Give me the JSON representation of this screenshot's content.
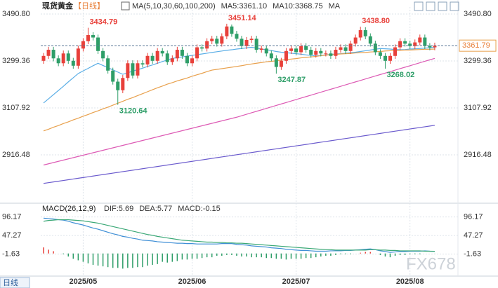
{
  "chart_data": [
    {
      "type": "candlestick",
      "title": "现货黄金",
      "subtitle": "【日线】",
      "period_label": "日线",
      "watermark": "FX678",
      "legend": [
        {
          "label": "MA(5,10,30,60,100,200)",
          "color": "#333333"
        },
        {
          "label": "MA5:3361.10",
          "color": "#4a90c8"
        },
        {
          "label": "MA10:3368.75",
          "color": "#4a90c8"
        },
        {
          "label": "MA",
          "color": "#4a90c8"
        }
      ],
      "up_color": "#e8403a",
      "down_color": "#2e9e68",
      "grid": true,
      "ylim": [
        2725,
        3519.4
      ],
      "yticks": [
        {
          "value": 3490.8,
          "label": "3490.80"
        },
        {
          "value": 3299.36,
          "label": "3299.36"
        },
        {
          "value": 3107.92,
          "label": "3107.92"
        },
        {
          "value": 2916.48,
          "label": "2916.48"
        }
      ],
      "categories": [
        null,
        null,
        null,
        null,
        null,
        null,
        null,
        null,
        "2025/05",
        null,
        null,
        null,
        null,
        null,
        null,
        null,
        null,
        null,
        null,
        null,
        null,
        null,
        null,
        null,
        null,
        null,
        null,
        null,
        null,
        null,
        "2025/06",
        null,
        null,
        null,
        null,
        null,
        null,
        null,
        null,
        null,
        null,
        null,
        null,
        null,
        null,
        null,
        null,
        null,
        null,
        null,
        null,
        "2025/07",
        null,
        null,
        null,
        null,
        null,
        null,
        null,
        null,
        null,
        null,
        null,
        null,
        null,
        null,
        null,
        null,
        null,
        null,
        null,
        null,
        null,
        null,
        "2025/08",
        null,
        null,
        null,
        null,
        null
      ],
      "open": [
        3300,
        3320,
        3345,
        3310,
        3290,
        3330,
        3300,
        3280,
        3350,
        3380,
        3405,
        3395,
        3340,
        3310,
        3260,
        3215,
        3180,
        3230,
        3290,
        3240,
        3290,
        3285,
        3320,
        3300,
        3340,
        3330,
        3295,
        3310,
        3345,
        3320,
        3290,
        3310,
        3355,
        3350,
        3380,
        3390,
        3370,
        3400,
        3440,
        3410,
        3390,
        3360,
        3385,
        3390,
        3345,
        3350,
        3330,
        3310,
        3275,
        3300,
        3340,
        3350,
        3335,
        3360,
        3345,
        3325,
        3340,
        3330,
        3330,
        3320,
        3345,
        3355,
        3340,
        3370,
        3395,
        3425,
        3400,
        3370,
        3335,
        3320,
        3300,
        3320,
        3355,
        3380,
        3370,
        3360,
        3375,
        3395,
        3360,
        3355
      ],
      "high": [
        3332,
        3357,
        3357,
        3322,
        3342,
        3342,
        3312,
        3362,
        3392,
        3434.79,
        3417,
        3407,
        3352,
        3322,
        3272,
        3227,
        3242,
        3302,
        3302,
        3302,
        3302,
        3332,
        3332,
        3352,
        3352,
        3342,
        3322,
        3357,
        3357,
        3332,
        3322,
        3367,
        3367,
        3392,
        3402,
        3402,
        3412,
        3451.14,
        3448,
        3422,
        3402,
        3397,
        3402,
        3402,
        3362,
        3362,
        3342,
        3322,
        3312,
        3352,
        3362,
        3362,
        3372,
        3372,
        3357,
        3352,
        3352,
        3342,
        3342,
        3357,
        3367,
        3367,
        3382,
        3407,
        3438.8,
        3437,
        3412,
        3382,
        3347,
        3332,
        3332,
        3367,
        3392,
        3392,
        3382,
        3387,
        3407,
        3407,
        3372,
        3374
      ],
      "low": [
        3288,
        3308,
        3298,
        3278,
        3278,
        3288,
        3268,
        3268,
        3338,
        3368,
        3383,
        3328,
        3298,
        3248,
        3203,
        3120.64,
        3168,
        3218,
        3228,
        3228,
        3273,
        3273,
        3288,
        3288,
        3318,
        3283,
        3283,
        3298,
        3308,
        3278,
        3278,
        3298,
        3338,
        3338,
        3368,
        3358,
        3358,
        3388,
        3398,
        3378,
        3348,
        3348,
        3373,
        3333,
        3333,
        3318,
        3298,
        3247.87,
        3263,
        3288,
        3328,
        3323,
        3323,
        3333,
        3313,
        3313,
        3318,
        3318,
        3308,
        3308,
        3333,
        3328,
        3328,
        3358,
        3383,
        3388,
        3358,
        3323,
        3308,
        3268.02,
        3288,
        3308,
        3343,
        3358,
        3348,
        3348,
        3363,
        3348,
        3343,
        3343
      ],
      "close": [
        3320,
        3345,
        3310,
        3290,
        3330,
        3300,
        3280,
        3350,
        3380,
        3405,
        3395,
        3340,
        3310,
        3260,
        3215,
        3180,
        3230,
        3290,
        3240,
        3290,
        3285,
        3320,
        3300,
        3340,
        3330,
        3295,
        3310,
        3345,
        3320,
        3290,
        3310,
        3355,
        3350,
        3380,
        3390,
        3370,
        3400,
        3440,
        3410,
        3390,
        3360,
        3385,
        3390,
        3345,
        3350,
        3330,
        3310,
        3275,
        3300,
        3340,
        3350,
        3335,
        3360,
        3345,
        3325,
        3340,
        3330,
        3330,
        3320,
        3345,
        3355,
        3340,
        3370,
        3395,
        3425,
        3400,
        3370,
        3335,
        3320,
        3300,
        3320,
        3355,
        3380,
        3370,
        3360,
        3375,
        3395,
        3360,
        3355,
        3361.79
      ],
      "high_labels": [
        null,
        null,
        null,
        null,
        null,
        null,
        null,
        null,
        null,
        "3434.79",
        null,
        null,
        null,
        null,
        null,
        null,
        null,
        null,
        null,
        null,
        null,
        null,
        null,
        null,
        null,
        null,
        null,
        null,
        null,
        null,
        null,
        null,
        null,
        null,
        null,
        null,
        null,
        "3451.14",
        null,
        null,
        null,
        null,
        null,
        null,
        null,
        null,
        null,
        null,
        null,
        null,
        null,
        null,
        null,
        null,
        null,
        null,
        null,
        null,
        null,
        null,
        null,
        null,
        null,
        null,
        "3438.80",
        null,
        null,
        null,
        null,
        null,
        null,
        null,
        null,
        null,
        null,
        null,
        null,
        null,
        null,
        null
      ],
      "low_labels": [
        null,
        null,
        null,
        null,
        null,
        null,
        null,
        null,
        null,
        null,
        null,
        null,
        null,
        null,
        null,
        "3120.64",
        null,
        null,
        null,
        null,
        null,
        null,
        null,
        null,
        null,
        null,
        null,
        null,
        null,
        null,
        null,
        null,
        null,
        null,
        null,
        null,
        null,
        null,
        null,
        null,
        null,
        null,
        null,
        null,
        null,
        null,
        null,
        "3247.87",
        null,
        null,
        null,
        null,
        null,
        null,
        null,
        null,
        null,
        null,
        null,
        null,
        null,
        null,
        null,
        null,
        null,
        null,
        null,
        null,
        null,
        "3268.02",
        null,
        null,
        null,
        null,
        null,
        null,
        null,
        null,
        null,
        null
      ],
      "ma_lines": [
        {
          "color": "#5aaee6",
          "values": [
            3128,
            3145,
            3162,
            3179,
            3196,
            3214,
            3231,
            3248,
            3259,
            3269,
            3280,
            3290,
            3281,
            3272,
            3263,
            3254,
            3245,
            3251,
            3258,
            3264,
            3270,
            3277,
            3283,
            3290,
            3297,
            3303,
            3310,
            3313,
            3316,
            3319,
            3322,
            3325,
            3328,
            3331,
            3334,
            3337,
            3340,
            3343,
            3345,
            3348,
            3350,
            3353,
            3355,
            3352,
            3348,
            3345,
            3342,
            3338,
            3335,
            3333,
            3331,
            3329,
            3327,
            3324,
            3322,
            3320,
            3322,
            3324,
            3326,
            3328,
            3329,
            3331,
            3333,
            3335,
            3338,
            3341,
            3344,
            3347,
            3350,
            3349,
            3348,
            3346,
            3345,
            3346,
            3348,
            3349,
            3350,
            3352,
            3353,
            3355
          ]
        },
        {
          "color": "#e8a04c",
          "values": [
            3014,
            3021,
            3029,
            3036,
            3044,
            3051,
            3059,
            3066,
            3074,
            3081,
            3089,
            3096,
            3104,
            3111,
            3119,
            3127,
            3135,
            3143,
            3150,
            3158,
            3166,
            3174,
            3182,
            3190,
            3197,
            3205,
            3211,
            3218,
            3224,
            3230,
            3237,
            3243,
            3249,
            3256,
            3262,
            3265,
            3268,
            3271,
            3274,
            3277,
            3280,
            3284,
            3287,
            3290,
            3293,
            3296,
            3298,
            3300,
            3303,
            3305,
            3307,
            3309,
            3312,
            3314,
            3316,
            3318,
            3321,
            3323,
            3325,
            3326,
            3328,
            3329,
            3330,
            3332,
            3333,
            3334,
            3336,
            3337,
            3338,
            3340,
            3341,
            3342,
            3343,
            3344,
            3344,
            3345,
            3346,
            3347,
            3347,
            3348
          ]
        },
        {
          "color": "#dd5bb5",
          "values": [
            2875,
            2880,
            2885,
            2890,
            2895,
            2900,
            2905,
            2910,
            2915,
            2920,
            2925,
            2930,
            2935,
            2940,
            2945,
            2950,
            2955,
            2960,
            2965,
            2970,
            2975,
            2980,
            2985,
            2990,
            2995,
            3000,
            3005,
            3010,
            3015,
            3020,
            3025,
            3030,
            3035,
            3040,
            3045,
            3050,
            3055,
            3060,
            3065,
            3070,
            3076,
            3082,
            3088,
            3094,
            3100,
            3106,
            3112,
            3118,
            3124,
            3130,
            3136,
            3142,
            3148,
            3154,
            3160,
            3166,
            3172,
            3178,
            3184,
            3190,
            3196,
            3202,
            3208,
            3214,
            3220,
            3226,
            3232,
            3238,
            3244,
            3250,
            3256,
            3262,
            3268,
            3274,
            3280,
            3286,
            3292,
            3298,
            3304,
            3310
          ]
        },
        {
          "color": "#6a5acd",
          "values": [
            2800,
            2803,
            2806,
            2809,
            2812,
            2815,
            2818,
            2821,
            2824,
            2827,
            2830,
            2833,
            2836,
            2839,
            2842,
            2845,
            2848,
            2851,
            2854,
            2857,
            2860,
            2863,
            2866,
            2869,
            2872,
            2875,
            2878,
            2881,
            2884,
            2887,
            2890,
            2893,
            2896,
            2899,
            2902,
            2905,
            2908,
            2911,
            2914,
            2917,
            2920,
            2923,
            2926,
            2929,
            2932,
            2935,
            2938,
            2941,
            2944,
            2947,
            2950,
            2953,
            2956,
            2959,
            2962,
            2965,
            2968,
            2971,
            2974,
            2977,
            2980,
            2983,
            2986,
            2989,
            2992,
            2995,
            2998,
            3001,
            3004,
            3007,
            3010,
            3013,
            3016,
            3019,
            3022,
            3025,
            3028,
            3031,
            3034,
            3037
          ]
        }
      ]
    },
    {
      "type": "macd",
      "title": "MACD(26,12,9)",
      "legend": [
        {
          "label": "DIF:5.69",
          "color": "#3f8fd6"
        },
        {
          "label": "DEA:5.77",
          "color": "#3aa876"
        },
        {
          "label": "MACD:-0.15",
          "color": "#8a5cc8"
        }
      ],
      "ylim": [
        -57.8,
        127
      ],
      "yticks": [
        96.17,
        47.27,
        -1.63
      ],
      "grid": true,
      "dif": {
        "color": "#3f8fd6",
        "values": [
          93,
          92,
          91,
          89,
          88,
          85,
          81,
          78,
          75,
          71,
          67,
          64,
          60,
          56,
          52,
          49,
          45,
          43,
          40,
          38,
          35,
          34,
          33,
          31,
          30,
          29,
          28,
          27,
          27,
          26,
          26,
          25,
          25,
          25,
          25,
          25,
          26,
          26,
          26,
          24,
          23,
          22,
          20,
          19,
          18,
          17,
          15,
          14,
          13,
          11,
          10,
          9,
          8,
          8,
          7,
          6,
          6,
          6,
          7,
          7,
          7,
          8,
          8,
          9,
          10,
          11,
          12,
          10,
          7,
          5,
          3,
          4,
          5,
          5,
          6,
          6,
          6,
          7,
          6,
          5.69
        ]
      },
      "dea": {
        "color": "#3aa876",
        "values": [
          85,
          87,
          88,
          89,
          89,
          89,
          88,
          87,
          86,
          84,
          82,
          80,
          77,
          74,
          71,
          68,
          65,
          62,
          59,
          56,
          53,
          50,
          48,
          45,
          43,
          41,
          39,
          37,
          35,
          34,
          33,
          32,
          31,
          30,
          30,
          29,
          29,
          28,
          28,
          27,
          27,
          26,
          25,
          24,
          23,
          22,
          21,
          20,
          19,
          18,
          17,
          16,
          15,
          14,
          13,
          12,
          11,
          10,
          10,
          9,
          9,
          9,
          9,
          9,
          9,
          9,
          10,
          10,
          9,
          9,
          8,
          8,
          7,
          7,
          7,
          7,
          7,
          6,
          6,
          5.77
        ]
      },
      "histogram": {
        "up_color": "#e8403a",
        "down_color": "#2e9e68",
        "values": [
          16,
          10,
          6,
          0,
          -2,
          -8,
          -14,
          -18,
          -22,
          -26,
          -30,
          -32,
          -34,
          -36,
          -38,
          -38,
          -40,
          -38,
          -38,
          -36,
          -36,
          -32,
          -30,
          -28,
          -22,
          -24,
          -22,
          -20,
          -16,
          -16,
          -14,
          -14,
          -12,
          -10,
          -10,
          -6,
          -6,
          -4,
          -4,
          -6,
          -8,
          -8,
          -10,
          -10,
          -10,
          -12,
          -12,
          -14,
          -14,
          -16,
          -14,
          -14,
          -14,
          -12,
          -12,
          -10,
          -8,
          -6,
          -6,
          -4,
          -2,
          -2,
          -2,
          0,
          2,
          4,
          4,
          0,
          -4,
          -8,
          -10,
          -6,
          -4,
          -4,
          -2,
          -2,
          -2,
          0,
          0,
          -0.15
        ]
      }
    }
  ]
}
